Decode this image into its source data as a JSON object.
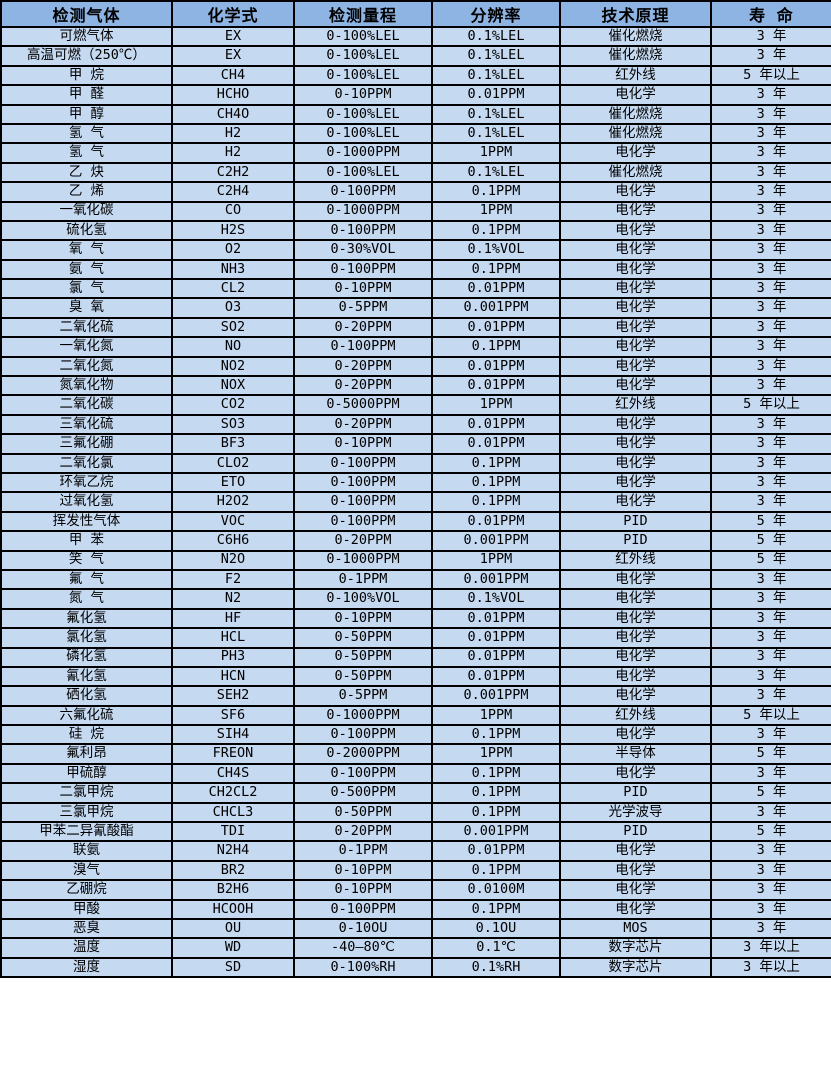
{
  "table": {
    "columns": [
      {
        "key": "gas",
        "label": "检测气体"
      },
      {
        "key": "formula",
        "label": "化学式"
      },
      {
        "key": "range",
        "label": "检测量程"
      },
      {
        "key": "resolution",
        "label": "分辨率"
      },
      {
        "key": "principle",
        "label": "技术原理"
      },
      {
        "key": "lifespan",
        "label": "寿 命"
      }
    ],
    "rows": [
      [
        "可燃气体",
        "EX",
        "0-100%LEL",
        "0.1%LEL",
        "催化燃烧",
        "3 年"
      ],
      [
        "高温可燃（250℃）",
        "EX",
        "0-100%LEL",
        "0.1%LEL",
        "催化燃烧",
        "3 年"
      ],
      [
        "甲 烷",
        "CH4",
        "0-100%LEL",
        "0.1%LEL",
        "红外线",
        "5 年以上"
      ],
      [
        "甲 醛",
        "HCHO",
        "0-10PPM",
        "0.01PPM",
        "电化学",
        "3 年"
      ],
      [
        "甲 醇",
        "CH4O",
        "0-100%LEL",
        "0.1%LEL",
        "催化燃烧",
        "3 年"
      ],
      [
        "氢 气",
        "H2",
        "0-100%LEL",
        "0.1%LEL",
        "催化燃烧",
        "3 年"
      ],
      [
        "氢 气",
        "H2",
        "0-1000PPM",
        "1PPM",
        "电化学",
        "3 年"
      ],
      [
        "乙 炔",
        "C2H2",
        "0-100%LEL",
        "0.1%LEL",
        "催化燃烧",
        "3 年"
      ],
      [
        "乙 烯",
        "C2H4",
        "0-100PPM",
        "0.1PPM",
        "电化学",
        "3 年"
      ],
      [
        "一氧化碳",
        "CO",
        "0-1000PPM",
        "1PPM",
        "电化学",
        "3 年"
      ],
      [
        "硫化氢",
        "H2S",
        "0-100PPM",
        "0.1PPM",
        "电化学",
        "3 年"
      ],
      [
        "氧 气",
        "O2",
        "0-30%VOL",
        "0.1%VOL",
        "电化学",
        "3 年"
      ],
      [
        "氨 气",
        "NH3",
        "0-100PPM",
        "0.1PPM",
        "电化学",
        "3 年"
      ],
      [
        "氯 气",
        "CL2",
        "0-10PPM",
        "0.01PPM",
        "电化学",
        "3 年"
      ],
      [
        "臭 氧",
        "O3",
        "0-5PPM",
        "0.001PPM",
        "电化学",
        "3 年"
      ],
      [
        "二氧化硫",
        "SO2",
        "0-20PPM",
        "0.01PPM",
        "电化学",
        "3 年"
      ],
      [
        "一氧化氮",
        "NO",
        "0-100PPM",
        "0.1PPM",
        "电化学",
        "3 年"
      ],
      [
        "二氧化氮",
        "NO2",
        "0-20PPM",
        "0.01PPM",
        "电化学",
        "3 年"
      ],
      [
        "氮氧化物",
        "NOX",
        "0-20PPM",
        "0.01PPM",
        "电化学",
        "3 年"
      ],
      [
        "二氧化碳",
        "CO2",
        "0-5000PPM",
        "1PPM",
        "红外线",
        "5 年以上"
      ],
      [
        "三氧化硫",
        "SO3",
        "0-20PPM",
        "0.01PPM",
        "电化学",
        "3 年"
      ],
      [
        "三氟化硼",
        "BF3",
        "0-10PPM",
        "0.01PPM",
        "电化学",
        "3 年"
      ],
      [
        "二氧化氯",
        "CLO2",
        "0-100PPM",
        "0.1PPM",
        "电化学",
        "3 年"
      ],
      [
        "环氧乙烷",
        "ETO",
        "0-100PPM",
        "0.1PPM",
        "电化学",
        "3 年"
      ],
      [
        "过氧化氢",
        "H2O2",
        "0-100PPM",
        "0.1PPM",
        "电化学",
        "3 年"
      ],
      [
        "挥发性气体",
        "VOC",
        "0-100PPM",
        "0.01PPM",
        "PID",
        "5 年"
      ],
      [
        "甲 苯",
        "C6H6",
        "0-20PPM",
        "0.001PPM",
        "PID",
        "5 年"
      ],
      [
        "笑 气",
        "N2O",
        "0-1000PPM",
        "1PPM",
        "红外线",
        "5 年"
      ],
      [
        "氟 气",
        "F2",
        "0-1PPM",
        "0.001PPM",
        "电化学",
        "3 年"
      ],
      [
        "氮 气",
        "N2",
        "0-100%VOL",
        "0.1%VOL",
        "电化学",
        "3 年"
      ],
      [
        "氟化氢",
        "HF",
        "0-10PPM",
        "0.01PPM",
        "电化学",
        "3 年"
      ],
      [
        "氯化氢",
        "HCL",
        "0-50PPM",
        "0.01PPM",
        "电化学",
        "3 年"
      ],
      [
        "磷化氢",
        "PH3",
        "0-50PPM",
        "0.01PPM",
        "电化学",
        "3 年"
      ],
      [
        "氰化氢",
        "HCN",
        "0-50PPM",
        "0.01PPM",
        "电化学",
        "3 年"
      ],
      [
        "硒化氢",
        "SEH2",
        "0-5PPM",
        "0.001PPM",
        "电化学",
        "3 年"
      ],
      [
        "六氟化硫",
        "SF6",
        "0-1000PPM",
        "1PPM",
        "红外线",
        "5 年以上"
      ],
      [
        "硅 烷",
        "SIH4",
        "0-100PPM",
        "0.1PPM",
        "电化学",
        "3 年"
      ],
      [
        "氟利昂",
        "FREON",
        "0-2000PPM",
        "1PPM",
        "半导体",
        "5 年"
      ],
      [
        "甲硫醇",
        "CH4S",
        "0-100PPM",
        "0.1PPM",
        "电化学",
        "3 年"
      ],
      [
        "二氯甲烷",
        "CH2CL2",
        "0-500PPM",
        "0.1PPM",
        "PID",
        "5 年"
      ],
      [
        "三氯甲烷",
        "CHCL3",
        "0-50PPM",
        "0.1PPM",
        "光学波导",
        "3 年"
      ],
      [
        "甲苯二异氰酸酯",
        "TDI",
        "0-20PPM",
        "0.001PPM",
        "PID",
        "5 年"
      ],
      [
        "联氨",
        "N2H4",
        "0-1PPM",
        "0.01PPM",
        "电化学",
        "3 年"
      ],
      [
        "溴气",
        "BR2",
        "0-10PPM",
        "0.1PPM",
        "电化学",
        "3 年"
      ],
      [
        "乙硼烷",
        "B2H6",
        "0-10PPM",
        "0.0100M",
        "电化学",
        "3 年"
      ],
      [
        "甲酸",
        "HCOOH",
        "0-100PPM",
        "0.1PPM",
        "电化学",
        "3 年"
      ],
      [
        "恶臭",
        "OU",
        "0-10OU",
        "0.1OU",
        "MOS",
        "3 年"
      ],
      [
        "温度",
        "WD",
        "-40—80℃",
        "0.1℃",
        "数字芯片",
        "3 年以上"
      ],
      [
        "湿度",
        "SD",
        "0-100%RH",
        "0.1%RH",
        "数字芯片",
        "3 年以上"
      ]
    ]
  },
  "colors": {
    "header_bg": "#8DB4E2",
    "row_bg": "#C5D9F1",
    "border": "#000000",
    "text": "#000000"
  }
}
